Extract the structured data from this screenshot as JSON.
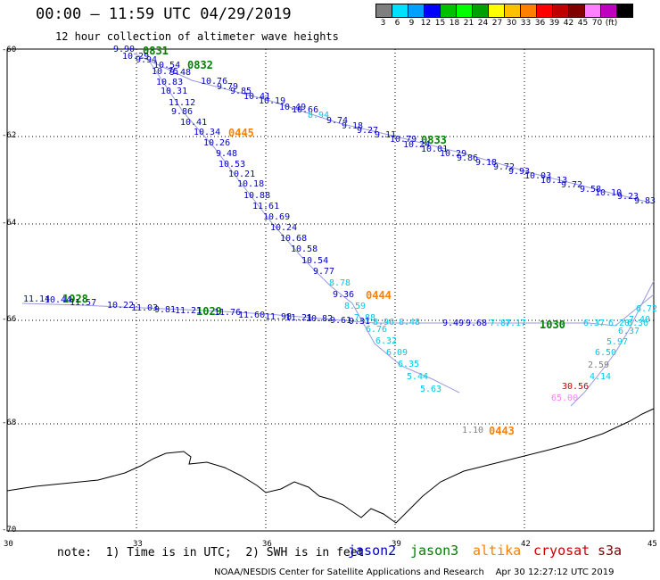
{
  "header": {
    "title": "00:00 – 11:59 UTC 04/29/2019",
    "subtitle": "12 hour collection of altimeter wave heights"
  },
  "colorbar": {
    "colors": [
      "#7f7f7f",
      "#00e0ff",
      "#00a0ff",
      "#0000ff",
      "#00c000",
      "#00ff00",
      "#00a000",
      "#ffff00",
      "#ffc000",
      "#ff8000",
      "#ff0000",
      "#c00000",
      "#800000",
      "#ff80ff",
      "#c000c0",
      "#000000"
    ],
    "labels": [
      "3",
      "6",
      "9",
      "12",
      "15",
      "18",
      "21",
      "24",
      "27",
      "30",
      "33",
      "36",
      "39",
      "42",
      "45",
      "70",
      "(ft)"
    ]
  },
  "axes": {
    "lat_labels": [
      "-60",
      "-62",
      "-64",
      "-66",
      "-68",
      "-70"
    ],
    "lon_labels": [
      "30",
      "33",
      "36",
      "39",
      "42",
      "45"
    ]
  },
  "footer": {
    "note": "note:  1) Time is in UTC;  2) SWH is in feet",
    "satellites": [
      {
        "name": "jason2",
        "color": "#0000cc"
      },
      {
        "name": "jason3",
        "color": "#008000"
      },
      {
        "name": "altika",
        "color": "#ff8000"
      },
      {
        "name": "cryosat",
        "color": "#cc0000"
      },
      {
        "name": "s3a",
        "color": "#800000"
      }
    ],
    "credit": "NOAA/NESDIS Center for Satellite Applications and Research    Apr 30 12:27:12 UTC 2019"
  },
  "time_labels": [
    {
      "text": "0831",
      "sat": "jason3"
    },
    {
      "text": "0832",
      "sat": "jason3"
    },
    {
      "text": "0833",
      "sat": "jason3"
    },
    {
      "text": "0445",
      "sat": "altika"
    },
    {
      "text": "0444",
      "sat": "altika"
    },
    {
      "text": "0443",
      "sat": "altika"
    },
    {
      "text": "1028",
      "sat": "jason3"
    },
    {
      "text": "1029",
      "sat": "jason3"
    },
    {
      "text": "1030",
      "sat": "jason3"
    }
  ],
  "observations": [
    {
      "v": "9.90"
    },
    {
      "v": "10.29"
    },
    {
      "v": "10.54"
    },
    {
      "v": "9.48"
    },
    {
      "v": "10.76"
    },
    {
      "v": "9.79"
    },
    {
      "v": "9.85"
    },
    {
      "v": "10.41"
    },
    {
      "v": "10.19"
    },
    {
      "v": "10.49"
    },
    {
      "v": "10.66"
    },
    {
      "v": "8.94"
    },
    {
      "v": "9.74"
    },
    {
      "v": "9.18"
    },
    {
      "v": "9.27"
    },
    {
      "v": "9.11"
    },
    {
      "v": "10.79"
    },
    {
      "v": "10.24"
    },
    {
      "v": "10.01"
    },
    {
      "v": "10.29"
    },
    {
      "v": "9.86"
    },
    {
      "v": "9.18"
    },
    {
      "v": "9.72"
    },
    {
      "v": "9.93"
    },
    {
      "v": "10.03"
    },
    {
      "v": "10.13"
    },
    {
      "v": "9.72"
    },
    {
      "v": "9.58"
    },
    {
      "v": "10.10"
    },
    {
      "v": "9.23"
    },
    {
      "v": "9.83"
    },
    {
      "v": "9.94"
    },
    {
      "v": "10.75"
    },
    {
      "v": "10.83"
    },
    {
      "v": "10.31"
    },
    {
      "v": "11.12"
    },
    {
      "v": "9.86"
    },
    {
      "v": "10.41"
    },
    {
      "v": "10.34"
    },
    {
      "v": "10.26"
    },
    {
      "v": "9.48"
    },
    {
      "v": "10.53"
    },
    {
      "v": "10.21"
    },
    {
      "v": "10.18"
    },
    {
      "v": "10.88"
    },
    {
      "v": "11.61"
    },
    {
      "v": "10.69"
    },
    {
      "v": "10.24"
    },
    {
      "v": "10.68"
    },
    {
      "v": "10.58"
    },
    {
      "v": "10.54"
    },
    {
      "v": "9.77"
    },
    {
      "v": "8.78"
    },
    {
      "v": "9.36"
    },
    {
      "v": "8.59"
    },
    {
      "v": "7.88"
    },
    {
      "v": "6.76"
    },
    {
      "v": "6.32"
    },
    {
      "v": "6.09"
    },
    {
      "v": "6.35"
    },
    {
      "v": "5.44"
    },
    {
      "v": "5.63"
    },
    {
      "v": "11.14"
    },
    {
      "v": "10.44"
    },
    {
      "v": "11.57"
    },
    {
      "v": "10.22"
    },
    {
      "v": "11.03"
    },
    {
      "v": "9.81"
    },
    {
      "v": "11.21"
    },
    {
      "v": "11.76"
    },
    {
      "v": "11.60"
    },
    {
      "v": "11.98"
    },
    {
      "v": "11.21"
    },
    {
      "v": "10.82"
    },
    {
      "v": "9.61"
    },
    {
      "v": "9.31"
    },
    {
      "v": "8.96"
    },
    {
      "v": "8.48"
    },
    {
      "v": "9.49"
    },
    {
      "v": "9.68"
    },
    {
      "v": "7.87"
    },
    {
      "v": "7.17"
    },
    {
      "v": "6.37"
    },
    {
      "v": "6.20"
    },
    {
      "v": "6.36"
    },
    {
      "v": "7.40"
    },
    {
      "v": "6.72"
    },
    {
      "v": "6.37"
    },
    {
      "v": "5.97"
    },
    {
      "v": "6.50"
    },
    {
      "v": "2.59"
    },
    {
      "v": "4.14"
    },
    {
      "v": "30.56"
    },
    {
      "v": "65.00"
    },
    {
      "v": "1.10"
    }
  ]
}
